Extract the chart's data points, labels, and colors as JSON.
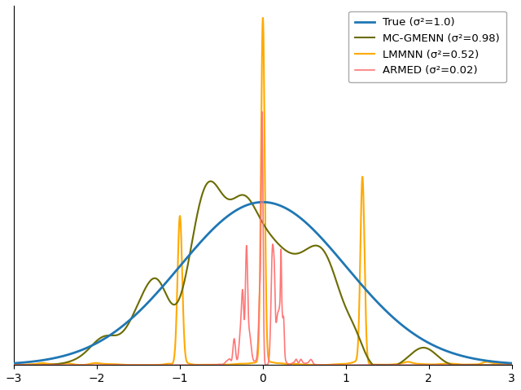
{
  "xlim": [
    -3,
    3
  ],
  "ylim": [
    0,
    0.88
  ],
  "xticks": [
    -3,
    -2,
    -1,
    0,
    1,
    2,
    3
  ],
  "true_color": "#1f77b4",
  "mcgmenn_color": "#6b6b00",
  "lmmnn_color": "#ffaa00",
  "armed_color": "#ff7777",
  "true_label": "True (σ²=1.0)",
  "mcgmenn_label": "MC-GMENN (σ²=0.98)",
  "lmmnn_label": "LMMNN (σ²=0.52)",
  "armed_label": "ARMED (σ²=0.02)",
  "fig_w": 6.4,
  "fig_h": 4.79,
  "dpi": 100
}
